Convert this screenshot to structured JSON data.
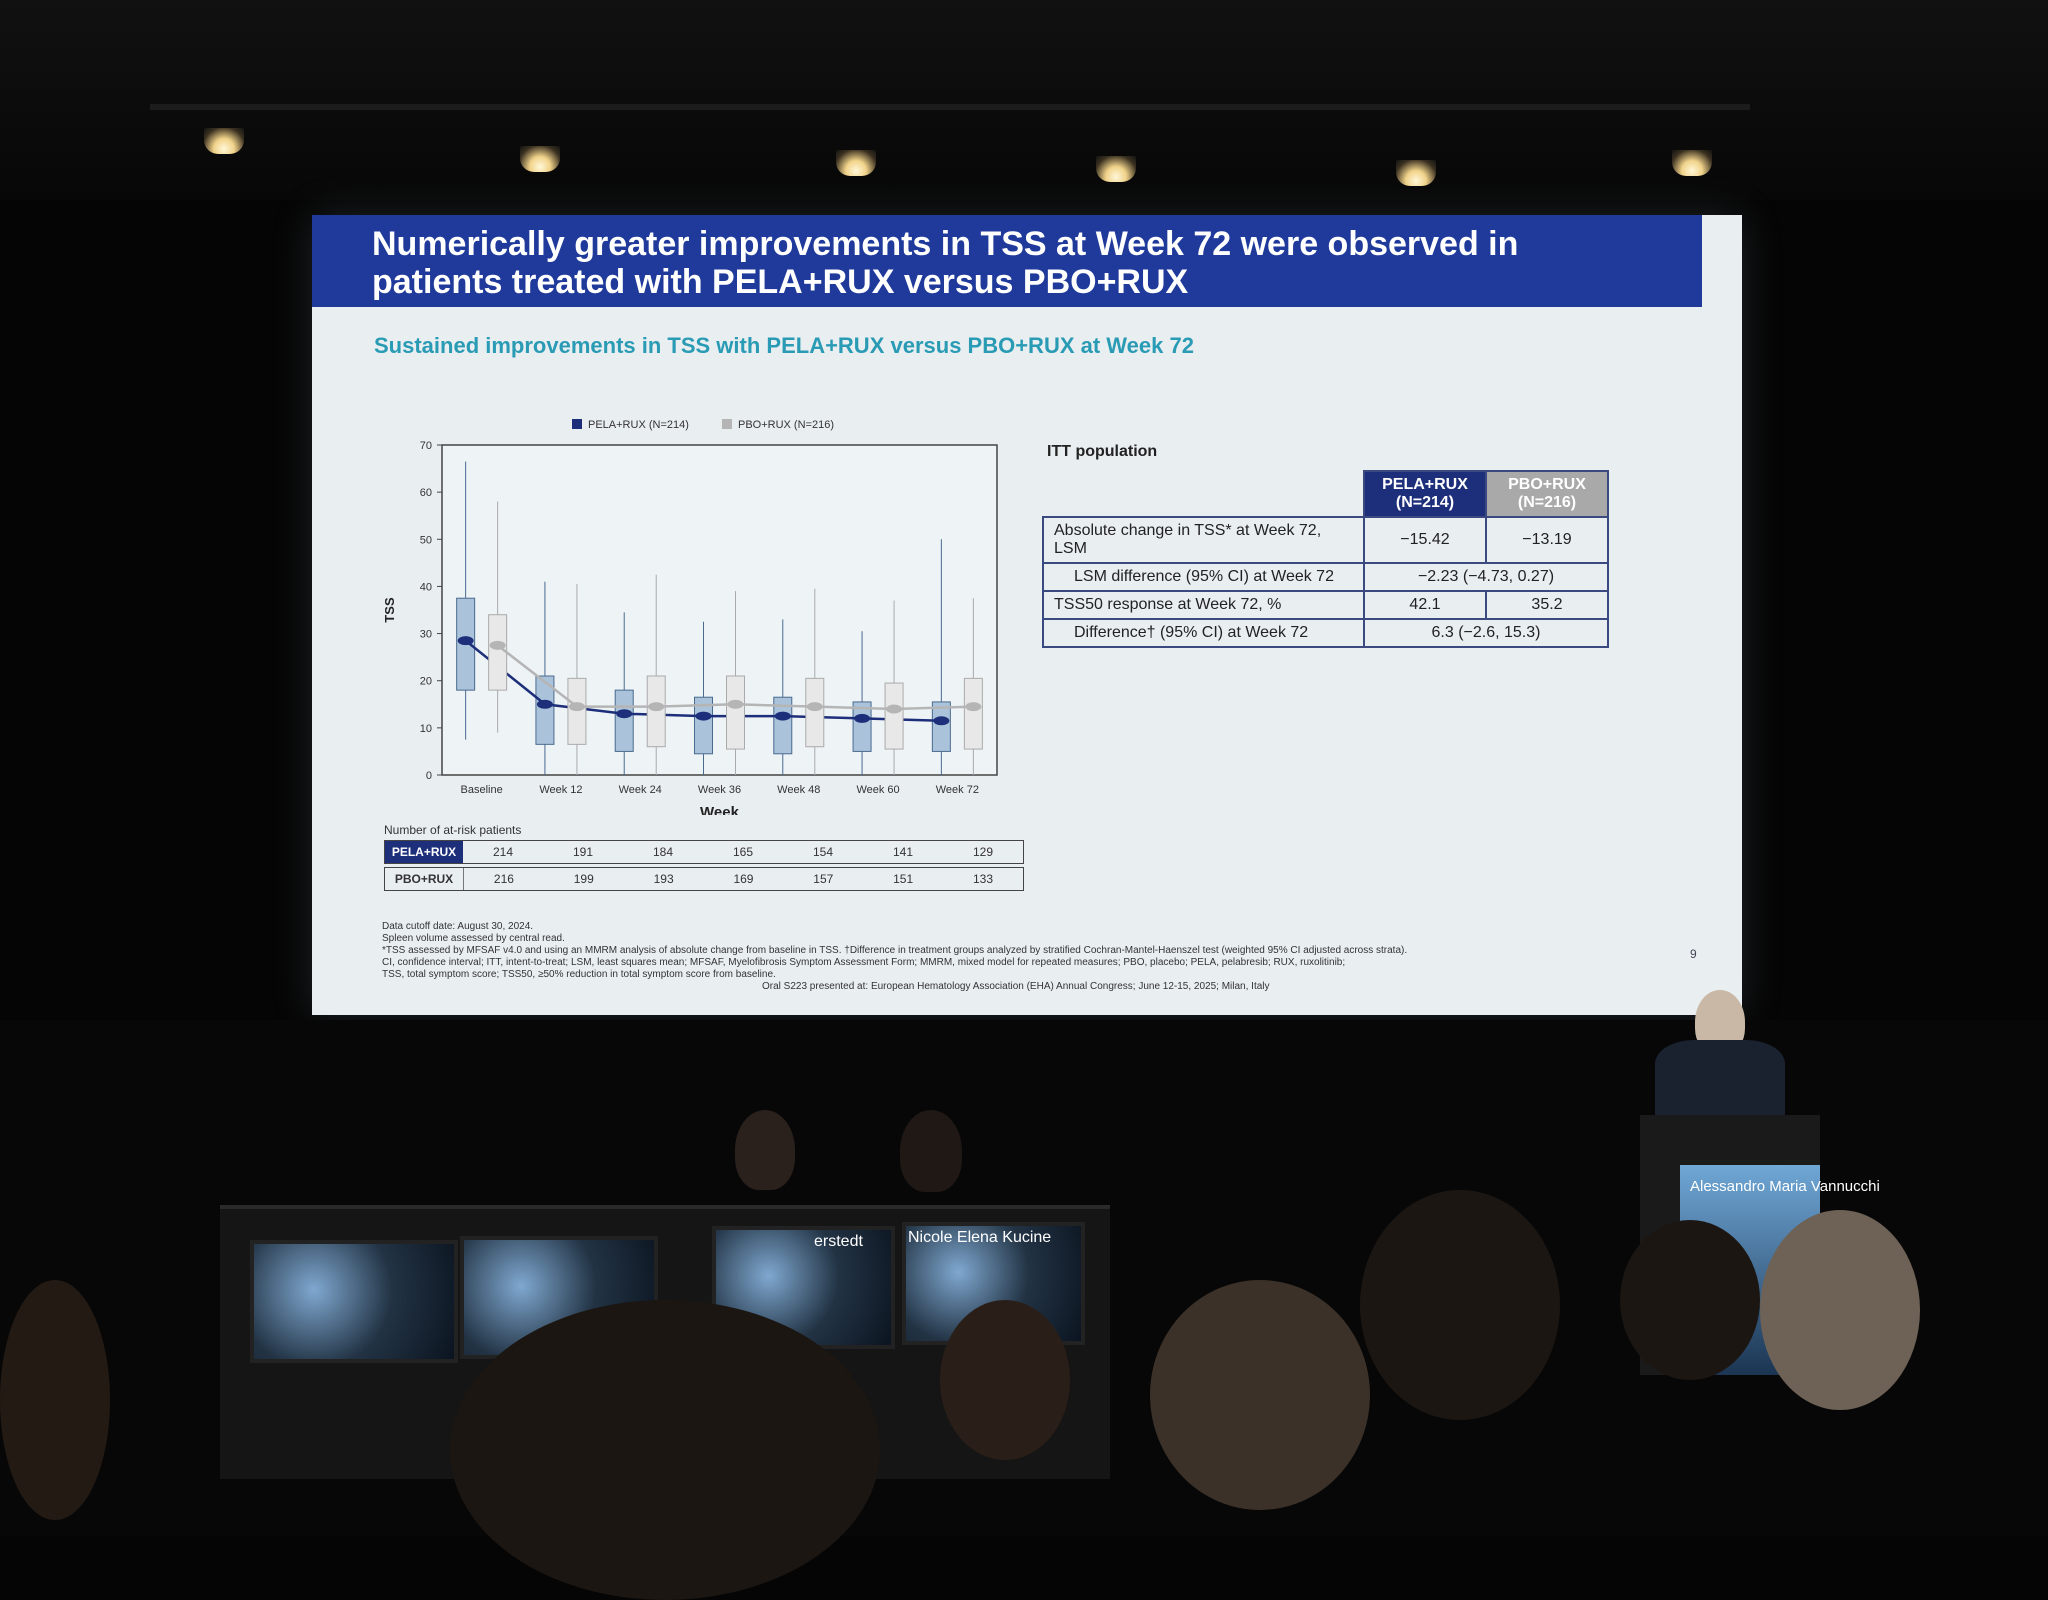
{
  "slide": {
    "title": "Numerically greater improvements in TSS at Week 72 were observed in patients treated with PELA+RUX versus PBO+RUX",
    "subtitle": "Sustained improvements in TSS with PELA+RUX versus PBO+RUX at Week 72",
    "page_number": "9",
    "footnotes": [
      "Data cutoff date: August 30, 2024.",
      "Spleen volume assessed by central read.",
      "*TSS assessed by MFSAF v4.0 and using an MMRM analysis of absolute change from baseline in TSS. †Difference in treatment groups analyzed by stratified Cochran-Mantel-Haenszel test (weighted 95% CI adjusted across strata).",
      "CI, confidence interval; ITT, intent-to-treat; LSM, least squares mean; MFSAF, Myelofibrosis Symptom Assessment Form; MMRM, mixed model for repeated measures; PBO, placebo; PELA, pelabresib; RUX, ruxolitinib;",
      "TSS, total symptom score; TSS50, ≥50% reduction in total symptom score from baseline."
    ],
    "oral_note": "Oral S223 presented at: European Hematology Association (EHA) Annual Congress; June 12-15, 2025; Milan, Italy",
    "risk_table": {
      "label": "Number of at-risk patients",
      "rows": [
        {
          "name": "PELA+RUX",
          "values": [
            "214",
            "191",
            "184",
            "165",
            "154",
            "141",
            "129"
          ]
        },
        {
          "name": "PBO+RUX",
          "values": [
            "216",
            "199",
            "193",
            "169",
            "157",
            "151",
            "133"
          ]
        }
      ]
    },
    "itt": {
      "title": "ITT population",
      "col1": "PELA+RUX (N=214)",
      "col2": "PBO+RUX (N=216)",
      "rows": [
        {
          "label": "Absolute change in TSS* at Week 72, LSM",
          "v1": "−15.42",
          "v2": "−13.19"
        },
        {
          "label": "LSM difference (95% CI) at Week 72",
          "merged": "−2.23 (−4.73, 0.27)"
        },
        {
          "label": "TSS50 response at Week 72, %",
          "v1": "42.1",
          "v2": "35.2"
        },
        {
          "label": "Difference† (95% CI) at Week 72",
          "merged": "6.3 (−2.6, 15.3)"
        }
      ]
    }
  },
  "chart_data": {
    "type": "box",
    "xlabel": "Week",
    "ylabel": "TSS",
    "ylim": [
      0,
      70
    ],
    "yticks": [
      "0",
      "10",
      "20",
      "30",
      "40",
      "50",
      "60",
      "70"
    ],
    "categories": [
      "Baseline",
      "Week 12",
      "Week 24",
      "Week 36",
      "Week 48",
      "Week 60",
      "Week 72"
    ],
    "legend": [
      "PELA+RUX (N=214)",
      "PBO+RUX (N=216)"
    ],
    "colors": {
      "pela": "#1d2f7a",
      "pbo": "#b5b5b5",
      "pela_box": "#aac3da",
      "pbo_box": "#e8e8e8"
    },
    "series": [
      {
        "name": "PELA+RUX (N=214)",
        "mean": [
          28.5,
          15,
          13,
          12.5,
          12.5,
          12,
          11.5
        ],
        "q1": [
          18,
          6.5,
          5,
          4.5,
          4.5,
          5,
          5
        ],
        "q3": [
          37.5,
          21,
          18,
          16.5,
          16.5,
          15.5,
          15.5
        ],
        "min": [
          7.5,
          0,
          0,
          0,
          0,
          0,
          0
        ],
        "max": [
          66.5,
          41,
          34.5,
          32.5,
          33,
          30.5,
          50
        ]
      },
      {
        "name": "PBO+RUX (N=216)",
        "mean": [
          27.5,
          14.5,
          14.5,
          15,
          14.5,
          14,
          14.5
        ],
        "q1": [
          18,
          6.5,
          6,
          5.5,
          6,
          5.5,
          5.5
        ],
        "q3": [
          34,
          20.5,
          21,
          21,
          20.5,
          19.5,
          20.5
        ],
        "min": [
          9,
          0,
          0,
          0,
          0,
          0,
          0
        ],
        "max": [
          58,
          40.5,
          42.5,
          39,
          39.5,
          37,
          37.5
        ]
      }
    ]
  },
  "stage": {
    "nameplate_1": "erstedt",
    "nameplate_2": "Nicole Elena Kucine",
    "podium_name": "Alessandro Maria Vannucchi"
  }
}
